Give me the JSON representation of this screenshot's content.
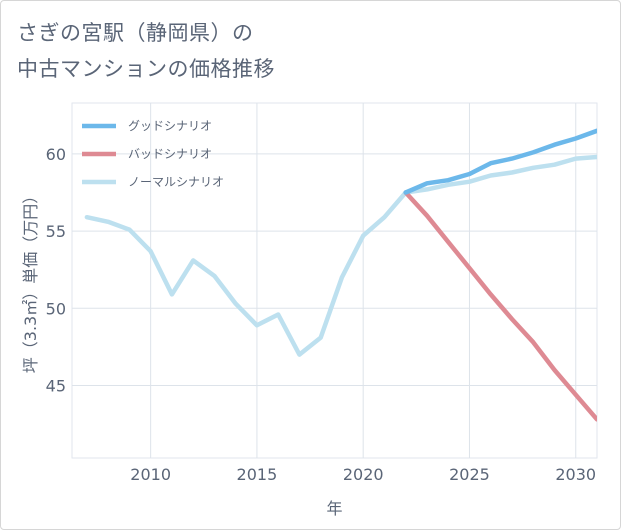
{
  "title_lines": [
    "さぎの宮駅（静岡県）の",
    "中古マンションの価格推移"
  ],
  "chart_data": {
    "type": "line",
    "xlabel": "年",
    "ylabel": "坪（3.3㎡）単価（万円）",
    "xlim": [
      2006.3,
      2031
    ],
    "ylim": [
      40.3,
      63.3
    ],
    "xticks": [
      2010,
      2015,
      2020,
      2025,
      2030
    ],
    "yticks": [
      45,
      50,
      55,
      60
    ],
    "grid": true,
    "legend_position": "top-left",
    "series": [
      {
        "name": "グッドシナリオ",
        "color": "#6cb8ea",
        "x": [
          2022,
          2023,
          2024,
          2025,
          2026,
          2027,
          2028,
          2029,
          2030,
          2031
        ],
        "y": [
          57.5,
          58.1,
          58.3,
          58.7,
          59.4,
          59.7,
          60.1,
          60.6,
          61.0,
          61.5
        ]
      },
      {
        "name": "バッドシナリオ",
        "color": "#de8a93",
        "x": [
          2022,
          2023,
          2024,
          2025,
          2026,
          2027,
          2028,
          2029,
          2030,
          2031
        ],
        "y": [
          57.5,
          56.0,
          54.3,
          52.6,
          50.9,
          49.3,
          47.8,
          46.0,
          44.4,
          42.8
        ]
      },
      {
        "name": "ノーマルシナリオ",
        "color": "#bde0ef",
        "x": [
          2007,
          2008,
          2009,
          2010,
          2011,
          2012,
          2013,
          2014,
          2015,
          2016,
          2017,
          2018,
          2019,
          2020,
          2021,
          2022,
          2023,
          2024,
          2025,
          2026,
          2027,
          2028,
          2029,
          2030,
          2031
        ],
        "y": [
          55.9,
          55.6,
          55.1,
          53.7,
          50.9,
          53.1,
          52.1,
          50.3,
          48.9,
          49.6,
          47.0,
          48.1,
          52.0,
          54.7,
          55.9,
          57.5,
          57.7,
          58.0,
          58.2,
          58.6,
          58.8,
          59.1,
          59.3,
          59.7,
          59.8
        ]
      }
    ]
  }
}
